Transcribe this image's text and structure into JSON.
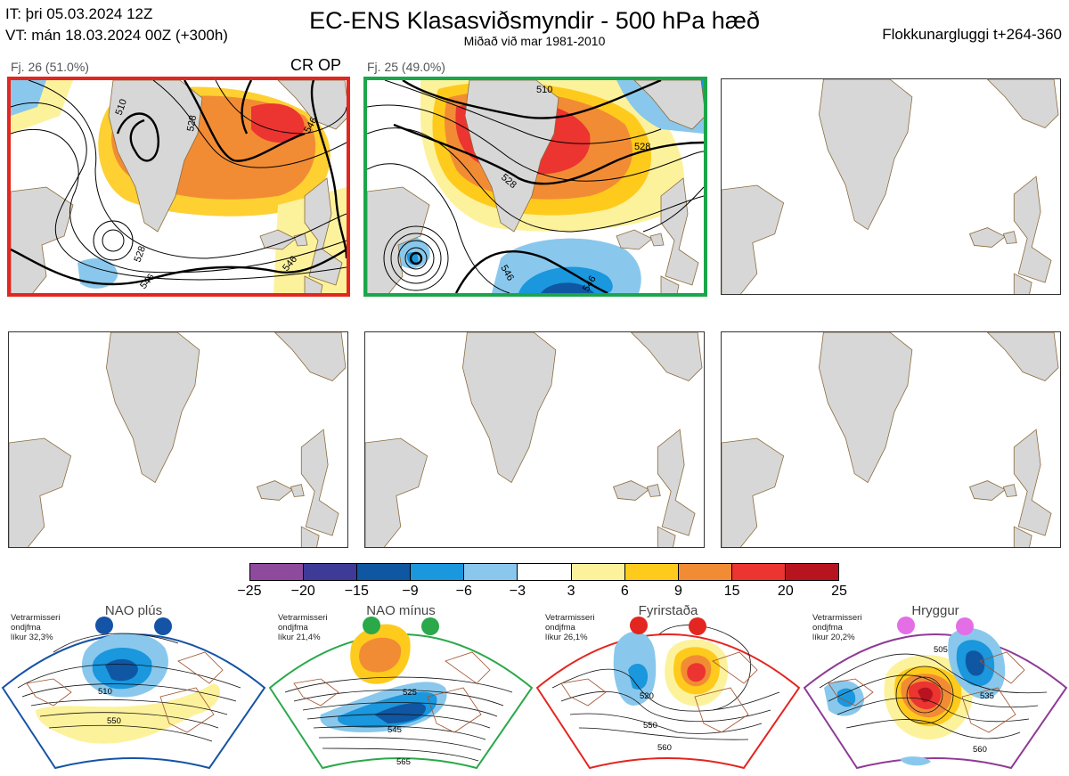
{
  "header": {
    "it_line": "IT: þri 05.03.2024 12Z",
    "vt_line": "VT: mán 18.03.2024 00Z  (+300h)",
    "title": "EC-ENS Klasasviðsmyndir - 500 hPa hæð",
    "subtitle": "Miðað við mar 1981-2010",
    "window": "Flokkunargluggi t+264-360"
  },
  "clusters": [
    {
      "label": "Fj. 26 (51.0%)",
      "tag": "CR OP",
      "border_color": "#e3261f",
      "contours": [
        "510",
        "528",
        "546",
        "528",
        "546",
        "546"
      ]
    },
    {
      "label": "Fj. 25 (49.0%)",
      "tag": "",
      "border_color": "#1aa64a",
      "contours": [
        "510",
        "528",
        "528",
        "546",
        "546"
      ]
    }
  ],
  "colorbar": {
    "ticks": [
      "−25",
      "−20",
      "−15",
      "−9",
      "−6",
      "−3",
      "3",
      "6",
      "9",
      "15",
      "20",
      "25"
    ],
    "colors": [
      "#8e4a9c",
      "#3e3a98",
      "#0f57a3",
      "#1a97dd",
      "#89c8ec",
      "#ffffff",
      "#fdf29c",
      "#fecb1c",
      "#f28c34",
      "#ec3431",
      "#b71420"
    ]
  },
  "regimes": [
    {
      "name": "NAO plús",
      "note": [
        "Vetrarmisseri",
        "ondjfma",
        "líkur 32,3%"
      ],
      "color": "#1553a6",
      "contours": [
        "510",
        "550"
      ]
    },
    {
      "name": "NAO mínus",
      "note": [
        "Vetrarmisseri",
        "ondjfma",
        "líkur 21,4%"
      ],
      "color": "#2aa84a",
      "contours": [
        "525",
        "545",
        "565"
      ]
    },
    {
      "name": "Fyrirstaða",
      "note": [
        "Vetrarmisseri",
        "ondjfma",
        "líkur 26,1%"
      ],
      "color": "#e3261f",
      "contours": [
        "520",
        "550",
        "560"
      ]
    },
    {
      "name": "Hryggur",
      "note": [
        "Vetrarmisseri",
        "ondjfma",
        "líkur 20,2%"
      ],
      "color": "#8e3a96",
      "contours": [
        "505",
        "535",
        "560"
      ]
    }
  ]
}
